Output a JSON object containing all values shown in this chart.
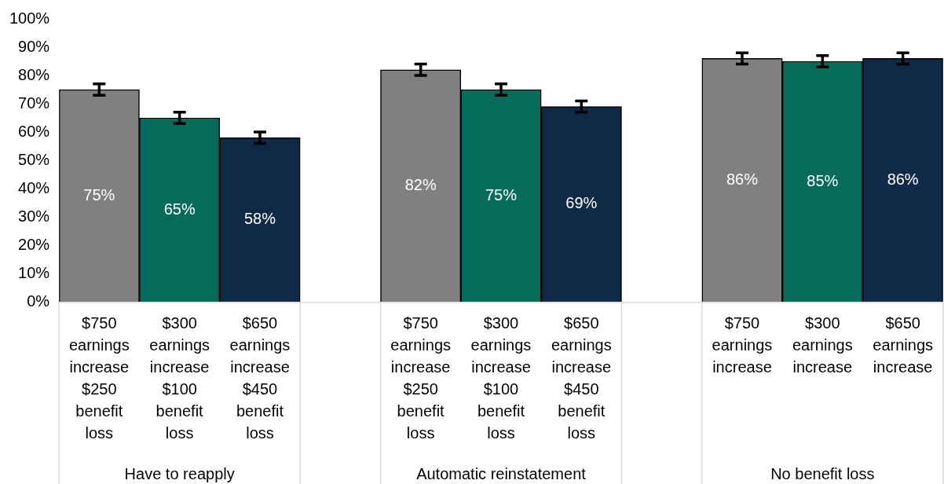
{
  "chart_data": {
    "type": "bar",
    "categories": [
      "$750\nearnings\nincrease\n$250\nbenefit\nloss",
      "$300\nearnings\nincrease\n$100\nbenefit\nloss",
      "$650\nearnings\nincrease\n$450\nbenefit\nloss",
      null,
      "$750\nearnings\nincrease\n$250\nbenefit\nloss",
      "$300\nearnings\nincrease\n$100\nbenefit\nloss",
      "$650\nearnings\nincrease\n$450\nbenefit\nloss",
      null,
      "$750\nearnings\nincrease",
      "$300\nearnings\nincrease",
      "$650\nearnings\nincrease"
    ],
    "values": [
      75,
      65,
      58,
      null,
      82,
      75,
      69,
      null,
      86,
      85,
      86
    ],
    "colors": [
      "#808080",
      "#076b5c",
      "#0e2a47",
      null,
      "#808080",
      "#076b5c",
      "#0e2a47",
      null,
      "#808080",
      "#076b5c",
      "#0e2a47"
    ],
    "errors": [
      2,
      2,
      2,
      null,
      2,
      2,
      2,
      null,
      2,
      2,
      2
    ],
    "value_labels": [
      "75%",
      "65%",
      "58%",
      null,
      "82%",
      "75%",
      "69%",
      null,
      "86%",
      "85%",
      "86%"
    ],
    "annotations": [
      "Have to reapply",
      "Automatic reinstatement",
      "No benefit loss"
    ],
    "ylim": [
      0,
      100
    ],
    "yticks": [
      {
        "value": 0,
        "label": "0%"
      },
      {
        "value": 10,
        "label": "10%"
      },
      {
        "value": 20,
        "label": "20%"
      },
      {
        "value": 30,
        "label": "30%"
      },
      {
        "value": 40,
        "label": "40%"
      },
      {
        "value": 50,
        "label": "50%"
      },
      {
        "value": 60,
        "label": "60%"
      },
      {
        "value": 70,
        "label": "70%"
      },
      {
        "value": 80,
        "label": "80%"
      },
      {
        "value": 90,
        "label": "90%"
      },
      {
        "value": 100,
        "label": "100%"
      }
    ],
    "grid": false,
    "legend": false
  }
}
